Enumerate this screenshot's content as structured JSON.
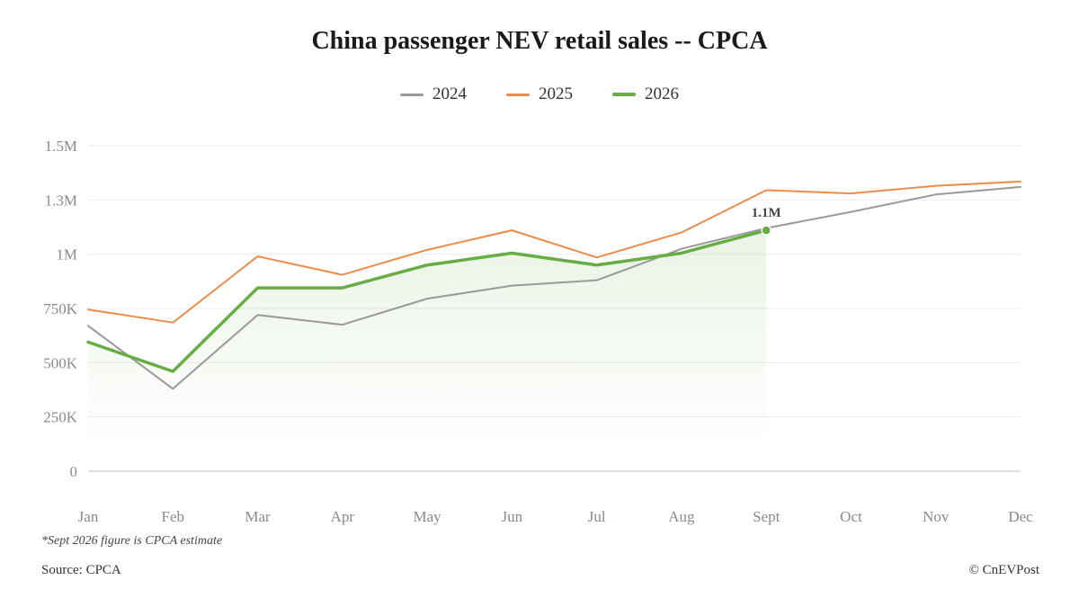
{
  "chart_data": {
    "type": "line",
    "title": "China passenger NEV retail sales -- CPCA",
    "categories": [
      "Jan",
      "Feb",
      "Mar",
      "Apr",
      "May",
      "Jun",
      "Jul",
      "Aug",
      "Sept",
      "Oct",
      "Nov",
      "Dec"
    ],
    "y_ticks": [
      {
        "value": 0,
        "label": "0"
      },
      {
        "value": 250000,
        "label": "250K"
      },
      {
        "value": 500000,
        "label": "500K"
      },
      {
        "value": 750000,
        "label": "750K"
      },
      {
        "value": 1000000,
        "label": "1M"
      },
      {
        "value": 1250000,
        "label": "1.3M"
      },
      {
        "value": 1500000,
        "label": "1.5M"
      }
    ],
    "ylim": [
      0,
      1500000
    ],
    "grid": true,
    "legend_position": "top-center",
    "series": [
      {
        "name": "2024",
        "color": "#999999",
        "values": [
          670000,
          380000,
          720000,
          675000,
          795000,
          855000,
          880000,
          1025000,
          1120000,
          1195000,
          1275000,
          1310000
        ]
      },
      {
        "name": "2025",
        "color": "#ea8c4a",
        "values": [
          745000,
          685000,
          990000,
          905000,
          1020000,
          1110000,
          985000,
          1100000,
          1295000,
          1280000,
          1315000,
          1335000
        ]
      },
      {
        "name": "2026",
        "color": "#67ad44",
        "highlight": true,
        "values": [
          595000,
          460000,
          845000,
          845000,
          950000,
          1005000,
          950000,
          1005000,
          1110000,
          null,
          null,
          null
        ]
      }
    ],
    "annotation": {
      "series": "2026",
      "category": "Sept",
      "label": "1.1M"
    }
  },
  "footnote": "*Sept 2026 figure is CPCA estimate",
  "source": "Source: CPCA",
  "credit": "© CnEVPost"
}
